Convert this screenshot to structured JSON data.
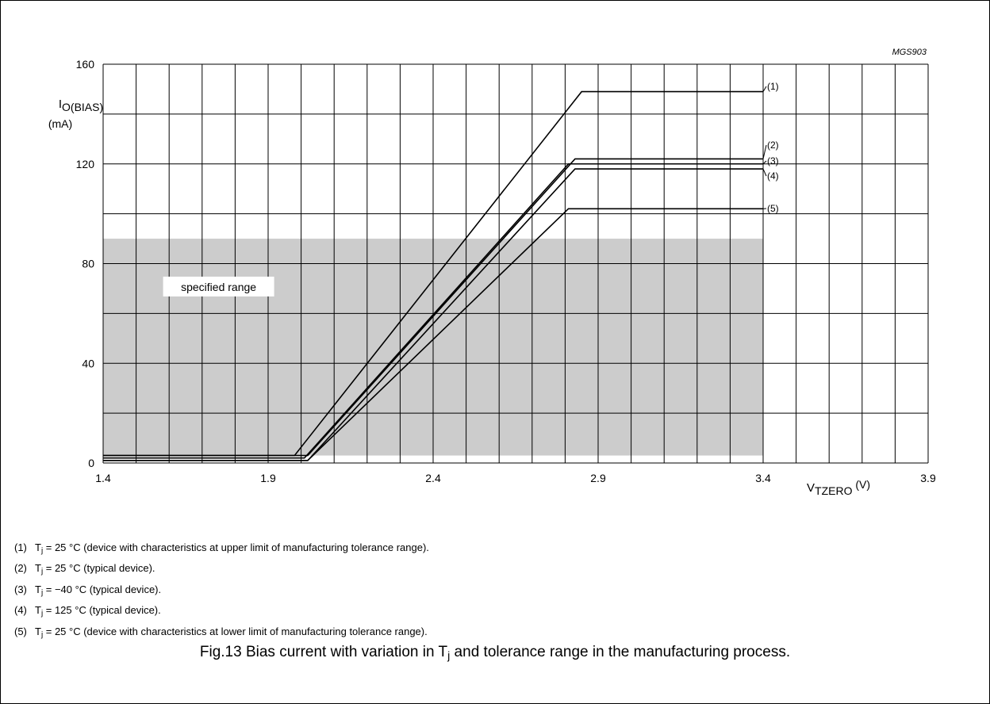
{
  "figure_id": "MGS903",
  "chart_data": {
    "type": "line",
    "ylabel_main": "I",
    "ylabel_sub": "O(BIAS)",
    "ylabel_unit": "(mA)",
    "xlabel_main": "V",
    "xlabel_sub": "TZERO",
    "xlabel_unit": "(V)",
    "xlim": [
      1.4,
      3.9
    ],
    "ylim": [
      0,
      160
    ],
    "x_ticks": [
      "1.4",
      "1.9",
      "2.4",
      "2.9",
      "3.4",
      "3.9"
    ],
    "x_tick_values": [
      1.4,
      1.9,
      2.4,
      2.9,
      3.4,
      3.9
    ],
    "y_ticks": [
      "0",
      "40",
      "80",
      "120",
      "160"
    ],
    "y_tick_values": [
      0,
      40,
      80,
      120,
      160
    ],
    "grid": true,
    "shaded_region": {
      "label": "specified range",
      "x": [
        1.4,
        3.4
      ],
      "y": [
        3,
        90
      ],
      "color": "#cccccc"
    },
    "series": [
      {
        "name": "(1)",
        "x": [
          1.4,
          1.98,
          2.85,
          3.4
        ],
        "y": [
          3,
          3,
          149,
          149
        ]
      },
      {
        "name": "(2)",
        "x": [
          1.4,
          2.02,
          2.83,
          3.4
        ],
        "y": [
          3,
          3,
          122,
          122
        ]
      },
      {
        "name": "(3)",
        "x": [
          1.4,
          2.01,
          2.81,
          3.4
        ],
        "y": [
          2,
          2,
          120,
          120
        ]
      },
      {
        "name": "(4)",
        "x": [
          1.4,
          2.02,
          2.83,
          3.4
        ],
        "y": [
          1,
          1,
          118,
          118
        ]
      },
      {
        "name": "(5)",
        "x": [
          1.4,
          2.02,
          2.81,
          3.4
        ],
        "y": [
          1,
          1,
          102,
          102
        ]
      }
    ]
  },
  "notes": [
    {
      "num": "(1)",
      "pre": "T",
      "sub": "j",
      "text": " = 25 °C (device with characteristics at upper limit of manufacturing tolerance range)."
    },
    {
      "num": "(2)",
      "pre": "T",
      "sub": "j",
      "text": " = 25 °C (typical device)."
    },
    {
      "num": "(3)",
      "pre": "T",
      "sub": "j",
      "text": " = −40 °C (typical device)."
    },
    {
      "num": "(4)",
      "pre": "T",
      "sub": "j",
      "text": " = 125 °C (typical device)."
    },
    {
      "num": "(5)",
      "pre": "T",
      "sub": "j",
      "text": " = 25 °C (device with characteristics at lower limit of manufacturing tolerance range)."
    }
  ],
  "caption": {
    "prefix": "Fig.13  Bias current with variation in T",
    "sub": "j",
    "suffix": " and tolerance range in the manufacturing process."
  }
}
